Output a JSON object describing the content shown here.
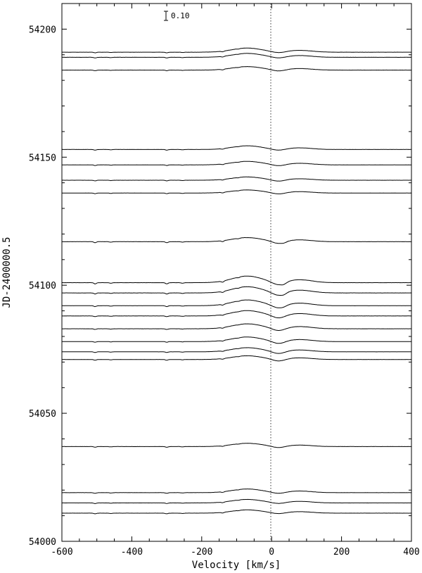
{
  "chart_data": {
    "type": "line",
    "xlabel": "Velocity [km/s]",
    "ylabel": "JD-2400000.5",
    "xlim": [
      -600,
      400
    ],
    "ylim": [
      54000,
      54210
    ],
    "x_ticks": [
      "-600",
      "-400",
      "-200",
      "0",
      "200",
      "400"
    ],
    "y_ticks": [
      "54000",
      "54050",
      "54100",
      "54150",
      "54200"
    ],
    "reference_line": {
      "x": 0,
      "style": "dotted"
    },
    "scale_bar": {
      "label": "0.10",
      "value": 0.1
    },
    "grid": false,
    "legend": "none",
    "series": [
      {
        "jd": 54191,
        "amp": 1.0,
        "dip": 0.45,
        "extra": 0.0
      },
      {
        "jd": 54189,
        "amp": 0.95,
        "dip": 0.5,
        "extra": 0.0
      },
      {
        "jd": 54184,
        "amp": 0.85,
        "dip": 0.55,
        "extra": 0.0
      },
      {
        "jd": 54153,
        "amp": 0.9,
        "dip": 0.5,
        "extra": 0.0
      },
      {
        "jd": 54147,
        "amp": 0.85,
        "dip": 0.55,
        "extra": 0.0
      },
      {
        "jd": 54141,
        "amp": 0.8,
        "dip": 0.55,
        "extra": 0.0
      },
      {
        "jd": 54136,
        "amp": 0.75,
        "dip": 0.55,
        "extra": 0.0
      },
      {
        "jd": 54117,
        "amp": 1.0,
        "dip": 0.9,
        "extra": 0.3
      },
      {
        "jd": 54101,
        "amp": 1.6,
        "dip": 1.2,
        "extra": 0.5
      },
      {
        "jd": 54097,
        "amp": 1.5,
        "dip": 1.3,
        "extra": 0.4
      },
      {
        "jd": 54092,
        "amp": 1.4,
        "dip": 1.2,
        "extra": 0.2
      },
      {
        "jd": 54088,
        "amp": 1.3,
        "dip": 1.1,
        "extra": 0.0
      },
      {
        "jd": 54083,
        "amp": 1.2,
        "dip": 1.0,
        "extra": 0.0
      },
      {
        "jd": 54078,
        "amp": 1.1,
        "dip": 1.0,
        "extra": 0.0
      },
      {
        "jd": 54074,
        "amp": 1.0,
        "dip": 0.9,
        "extra": 0.0
      },
      {
        "jd": 54071,
        "amp": 0.9,
        "dip": 0.8,
        "extra": 0.0
      },
      {
        "jd": 54037,
        "amp": 0.8,
        "dip": 0.6,
        "extra": 0.0
      },
      {
        "jd": 54019,
        "amp": 0.9,
        "dip": 0.5,
        "extra": 0.0
      },
      {
        "jd": 54015,
        "amp": 0.85,
        "dip": 0.45,
        "extra": 0.0
      },
      {
        "jd": 54011,
        "amp": 0.8,
        "dip": 0.4,
        "extra": 0.0
      }
    ]
  }
}
